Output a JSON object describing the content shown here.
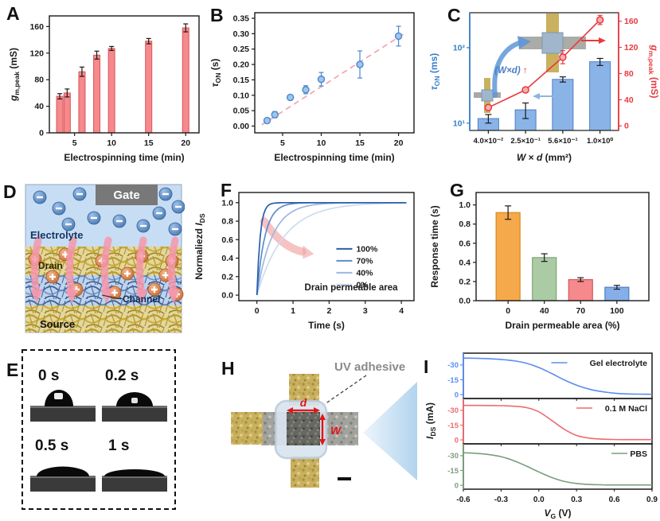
{
  "chart_data": [
    {
      "letter": "A",
      "type": "bar",
      "x": [
        3,
        4,
        6,
        8,
        10,
        15,
        20
      ],
      "values": [
        55,
        60,
        92,
        117,
        127,
        138,
        158
      ],
      "errors": [
        4,
        6,
        7,
        6,
        3,
        4,
        6
      ],
      "bar_fill": "#F5898C",
      "bar_edge": "#D9565C",
      "xlabel": "Electrospinning time (min)",
      "ylabel_parts": [
        {
          "t": "g",
          "i": true
        },
        {
          "t": "m,peak",
          "sub": true
        },
        {
          "t": " (mS)"
        }
      ],
      "xlim": [
        1.6,
        21.8
      ],
      "ylim": [
        0,
        176
      ],
      "xticks": [
        [
          5,
          "5"
        ],
        [
          10,
          "10"
        ],
        [
          15,
          "15"
        ],
        [
          20,
          "20"
        ]
      ],
      "yticks": [
        [
          0,
          "0"
        ],
        [
          40,
          "40"
        ],
        [
          80,
          "80"
        ],
        [
          120,
          "120"
        ],
        [
          160,
          "160"
        ]
      ]
    },
    {
      "letter": "B",
      "type": "scatter",
      "x": [
        3,
        4,
        6,
        8,
        10,
        15,
        20
      ],
      "values": [
        0.018,
        0.037,
        0.093,
        0.118,
        0.152,
        0.2,
        0.292
      ],
      "errors": [
        0.004,
        0.01,
        0.008,
        0.013,
        0.022,
        0.044,
        0.032
      ],
      "point_fill": "#9CC6EE",
      "point_edge": "#4C86CC",
      "trend": {
        "x1": 2.3,
        "y1": 0.004,
        "x2": 20.9,
        "y2": 0.303,
        "color": "#F4A7B0"
      },
      "xlabel": "Electrospinning time (min)",
      "ylabel_parts": [
        {
          "t": "τ",
          "i": true
        },
        {
          "t": "ON",
          "sub": true
        },
        {
          "t": " (s)"
        }
      ],
      "xlim": [
        1.4,
        22
      ],
      "ylim": [
        -0.022,
        0.368
      ],
      "xticks": [
        [
          5,
          "5"
        ],
        [
          10,
          "10"
        ],
        [
          15,
          "15"
        ],
        [
          20,
          "20"
        ]
      ],
      "yticks": [
        [
          0,
          "0.00"
        ],
        [
          0.05,
          "0.05"
        ],
        [
          0.1,
          "0.10"
        ],
        [
          0.15,
          "0.15"
        ],
        [
          0.2,
          "0.20"
        ],
        [
          0.25,
          "0.25"
        ],
        [
          0.3,
          "0.30"
        ],
        [
          0.35,
          "0.35"
        ]
      ]
    },
    {
      "letter": "C",
      "type": "dual-axis-bar-line",
      "categories": [
        "4.0×10⁻²",
        "2.5×10⁻¹",
        "5.6×10⁻¹",
        "1.0×10⁰"
      ],
      "bars": {
        "values": [
          11.5,
          15,
          38,
          65
        ],
        "errors": [
          1.5,
          3.5,
          3,
          7
        ],
        "fill": "#8AB4E8",
        "edge": "#4C7FC4"
      },
      "line": {
        "values": [
          28,
          55,
          105,
          162
        ],
        "errors": [
          4,
          4,
          10,
          7
        ],
        "color": "#E8393E",
        "marker_fill": "#F5AEB0"
      },
      "left_label_parts": [
        {
          "t": "τ",
          "i": true
        },
        {
          "t": "ON",
          "sub": true
        },
        {
          "t": " (ms)"
        }
      ],
      "right_label_parts": [
        {
          "t": "g",
          "i": true
        },
        {
          "t": "m,peak",
          "sub": true
        },
        {
          "t": " (mS)"
        }
      ],
      "xlabel_parts": [
        {
          "t": "W",
          "i": true
        },
        {
          "t": " × "
        },
        {
          "t": "d",
          "i": true
        },
        {
          "t": " (mm²)"
        }
      ],
      "left_ticks": [
        [
          10,
          "10¹"
        ],
        [
          100,
          "10²"
        ]
      ],
      "left_log_lim": [
        8,
        290
      ],
      "right_ticks": [
        [
          0,
          "0"
        ],
        [
          40,
          "40"
        ],
        [
          80,
          "80"
        ],
        [
          120,
          "120"
        ],
        [
          160,
          "160"
        ]
      ],
      "right_lim": [
        -7,
        173
      ],
      "left_color": "#3A7EC8",
      "right_color": "#E8393E",
      "annotation_parts": [
        {
          "t": "(W×d)",
          "i": true,
          "f": "#4C7FC4"
        },
        {
          "t": " ↑",
          "f": "#E8393E"
        }
      ]
    },
    {
      "letter": "F",
      "type": "line",
      "xlabel": "Time (s)",
      "ylabel_parts": [
        {
          "t": "Normaliezd "
        },
        {
          "t": "I",
          "i": true
        },
        {
          "t": "DS",
          "sub": true
        }
      ],
      "xlim": [
        -0.5,
        4.35
      ],
      "ylim": [
        -0.06,
        1.11
      ],
      "xticks": [
        [
          0,
          "0"
        ],
        [
          1,
          "1"
        ],
        [
          2,
          "2"
        ],
        [
          3,
          "3"
        ],
        [
          4,
          "4"
        ]
      ],
      "yticks": [
        [
          0,
          "0.0"
        ],
        [
          0.2,
          "0.2"
        ],
        [
          0.4,
          "0.4"
        ],
        [
          0.6,
          "0.6"
        ],
        [
          0.8,
          "0.8"
        ],
        [
          1,
          "1.0"
        ]
      ],
      "series": [
        {
          "name": "100%",
          "tau": 0.09,
          "color": "#2B5DA9"
        },
        {
          "name": "70%",
          "tau": 0.22,
          "color": "#5E8CCC"
        },
        {
          "name": "40%",
          "tau": 0.42,
          "color": "#9BB9E0"
        },
        {
          "name": "0%",
          "tau": 0.75,
          "color": "#CDDCF0"
        }
      ],
      "legend_title": "Drain permeable area"
    },
    {
      "letter": "G",
      "type": "bar",
      "categories": [
        "0",
        "40",
        "70",
        "100"
      ],
      "values": [
        0.92,
        0.45,
        0.22,
        0.14
      ],
      "errors": [
        0.07,
        0.04,
        0.02,
        0.02
      ],
      "colors": [
        {
          "fill": "#F5A94B",
          "edge": "#D9881C"
        },
        {
          "fill": "#ABCBA5",
          "edge": "#7FA379"
        },
        {
          "fill": "#F5898C",
          "edge": "#D9565C"
        },
        {
          "fill": "#86AEE8",
          "edge": "#4C7FC4"
        }
      ],
      "xlabel": "Drain permeable area (%)",
      "ylabel": "Response time (s)",
      "ylim": [
        0,
        1.13
      ],
      "yticks": [
        [
          0,
          "0.0"
        ],
        [
          0.2,
          "0.2"
        ],
        [
          0.4,
          "0.4"
        ],
        [
          0.6,
          "0.6"
        ],
        [
          0.8,
          "0.8"
        ],
        [
          1,
          "1.0"
        ]
      ]
    },
    {
      "letter": "I",
      "type": "transfer-curves",
      "xlabel_parts": [
        {
          "t": "V",
          "i": true
        },
        {
          "t": "G",
          "sub": true
        },
        {
          "t": " (V)"
        }
      ],
      "ylabel_parts": [
        {
          "t": "I",
          "i": true
        },
        {
          "t": "DS",
          "sub": true
        },
        {
          "t": " (mA)"
        }
      ],
      "xlim": [
        -0.6,
        0.9
      ],
      "xticks": [
        [
          -0.6,
          "-0.6"
        ],
        [
          -0.3,
          "-0.3"
        ],
        [
          0,
          "0.0"
        ],
        [
          0.3,
          "0.3"
        ],
        [
          0.6,
          "0.6"
        ],
        [
          0.9,
          "0.9"
        ]
      ],
      "ylim_top": -42,
      "ylim_bottom": 4,
      "yticks": [
        [
          -30,
          "-30"
        ],
        [
          -15,
          "-15"
        ],
        [
          0,
          "0"
        ]
      ],
      "x": [
        -0.6,
        -0.5,
        -0.4,
        -0.3,
        -0.2,
        -0.1,
        0,
        0.1,
        0.2,
        0.3,
        0.4,
        0.5,
        0.6,
        0.7,
        0.8,
        0.9
      ],
      "subplots": [
        {
          "name": "Gel electrolyte",
          "color": "#5B8DEF",
          "y": [
            -37,
            -36.8,
            -36.4,
            -35.6,
            -34.3,
            -31.8,
            -27.5,
            -21.5,
            -15,
            -9.5,
            -5.5,
            -3,
            -1.4,
            -0.7,
            -0.4,
            -0.3
          ]
        },
        {
          "name": "0.1 M NaCl",
          "color": "#EE6B6E",
          "y": [
            -35,
            -35,
            -34.9,
            -34.7,
            -34.2,
            -32.8,
            -28.5,
            -20,
            -11,
            -4.5,
            -1.8,
            -0.8,
            -0.4,
            -0.3,
            -0.3,
            -0.3
          ]
        },
        {
          "name": "PBS",
          "color": "#7A9E7C",
          "y": [
            -33,
            -32.4,
            -31.2,
            -29,
            -25,
            -19.5,
            -13.5,
            -8,
            -4,
            -1.8,
            -0.8,
            -0.4,
            -0.3,
            -0.3,
            -0.3,
            -0.3
          ]
        }
      ]
    }
  ],
  "panel_d": {
    "letter": "D",
    "labels": {
      "gate": "Gate",
      "electrolyte": "Electrolyte",
      "drain": "Drain",
      "channel": "Channel",
      "source": "Source"
    }
  },
  "panel_e": {
    "letter": "E",
    "times": [
      "0 s",
      "0.2 s",
      "0.5 s",
      "1 s"
    ]
  },
  "panel_h": {
    "letter": "H",
    "labels": {
      "adhesive": "UV adhesive",
      "d": "d",
      "w": "W"
    }
  }
}
